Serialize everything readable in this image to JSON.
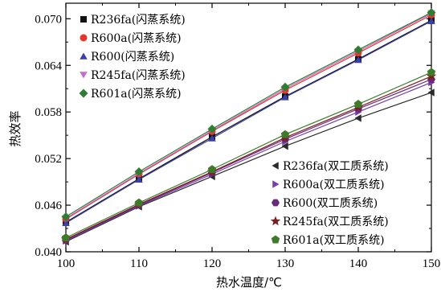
{
  "chart_data": {
    "type": "line",
    "xlabel": "热水温度/℃",
    "ylabel": "热效率",
    "xlim": [
      100,
      150
    ],
    "ylim": [
      0.04,
      0.072
    ],
    "x_ticks": [
      "100",
      "110",
      "120",
      "130",
      "140",
      "150"
    ],
    "y_ticks": [
      "0.040",
      "0.046",
      "0.052",
      "0.058",
      "0.064",
      "0.070"
    ],
    "legend_flash": "top-left",
    "legend_dual": "bottom-right",
    "x": [
      100,
      110,
      120,
      130,
      140,
      150
    ],
    "series": [
      {
        "name": "R236fa(闪蒸系统)",
        "group": "flash",
        "marker": "square",
        "color": "#111111",
        "values": [
          0.0438,
          0.0494,
          0.0548,
          0.06,
          0.0648,
          0.0698
        ]
      },
      {
        "name": "R600a(闪蒸系统)",
        "group": "flash",
        "marker": "circle",
        "color": "#e8332a",
        "values": [
          0.0442,
          0.05,
          0.0555,
          0.0608,
          0.0656,
          0.0705
        ]
      },
      {
        "name": "R600(闪蒸系统)",
        "group": "flash",
        "marker": "triangle-up",
        "color": "#3b3fa8",
        "values": [
          0.0437,
          0.0493,
          0.0546,
          0.0599,
          0.0647,
          0.0697
        ]
      },
      {
        "name": "R245fa(闪蒸系统)",
        "group": "flash",
        "marker": "triangle-down",
        "color": "#c36bd0",
        "values": [
          0.0443,
          0.0501,
          0.0556,
          0.061,
          0.0658,
          0.0707
        ]
      },
      {
        "name": "R601a(闪蒸系统)",
        "group": "flash",
        "marker": "diamond",
        "color": "#2e7d32",
        "values": [
          0.0445,
          0.0503,
          0.0558,
          0.0612,
          0.066,
          0.0708
        ]
      },
      {
        "name": "R236fa(双工质系统)",
        "group": "dual",
        "marker": "triangle-left",
        "color": "#2a2a2a",
        "values": [
          0.0413,
          0.0458,
          0.0497,
          0.0536,
          0.0572,
          0.0605
        ]
      },
      {
        "name": "R600a(双工质系统)",
        "group": "dual",
        "marker": "triangle-right",
        "color": "#7a3bb0",
        "values": [
          0.0414,
          0.0459,
          0.05,
          0.0542,
          0.058,
          0.0618
        ]
      },
      {
        "name": "R600(双工质系统)",
        "group": "dual",
        "marker": "hexagon",
        "color": "#6a2a7a",
        "values": [
          0.0415,
          0.046,
          0.0502,
          0.0545,
          0.0584,
          0.0622
        ]
      },
      {
        "name": "R245fa(双工质系统)",
        "group": "dual",
        "marker": "star",
        "color": "#7a1f1f",
        "values": [
          0.0416,
          0.0461,
          0.0503,
          0.0547,
          0.0586,
          0.0626
        ]
      },
      {
        "name": "R601a(双工质系统)",
        "group": "dual",
        "marker": "pentagon",
        "color": "#3f7a2a",
        "values": [
          0.0418,
          0.0463,
          0.0506,
          0.0551,
          0.059,
          0.0631
        ]
      }
    ]
  }
}
